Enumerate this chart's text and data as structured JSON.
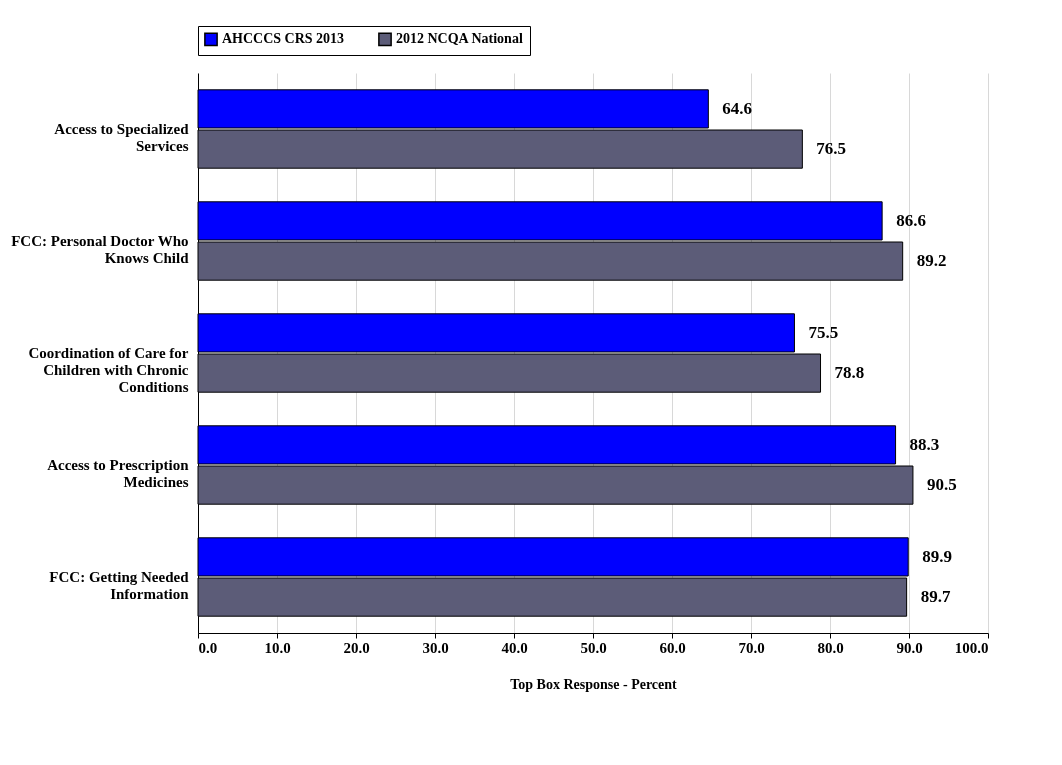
{
  "chart_data": {
    "type": "bar",
    "orientation": "horizontal",
    "xlabel": "Top Box Response - Percent",
    "categories": [
      "Access to Specialized Services",
      "FCC: Personal Doctor Who Knows Child",
      "Coordination of Care for Children with Chronic Conditions",
      "Access to Prescription Medicines",
      "FCC: Getting Needed Information"
    ],
    "series": [
      {
        "name": "AHCCCS CRS 2013",
        "color": "#0000ff",
        "values": [
          64.6,
          86.6,
          75.5,
          88.3,
          89.9
        ]
      },
      {
        "name": "2012 NCQA National",
        "color": "#5c5c78",
        "values": [
          76.5,
          89.2,
          78.8,
          90.5,
          89.7
        ]
      }
    ],
    "xlim": [
      0,
      100
    ],
    "xticks": [
      {
        "value": 0,
        "label": "0.0"
      },
      {
        "value": 10,
        "label": "10.0"
      },
      {
        "value": 20,
        "label": "20.0"
      },
      {
        "value": 30,
        "label": "30.0"
      },
      {
        "value": 40,
        "label": "40.0"
      },
      {
        "value": 50,
        "label": "50.0"
      },
      {
        "value": 60,
        "label": "60.0"
      },
      {
        "value": 70,
        "label": "70.0"
      },
      {
        "value": 80,
        "label": "80.0"
      },
      {
        "value": 90,
        "label": "90.0"
      },
      {
        "value": 100,
        "label": "100.0"
      }
    ],
    "grid": "x",
    "legend": "top",
    "data_labels": true
  }
}
